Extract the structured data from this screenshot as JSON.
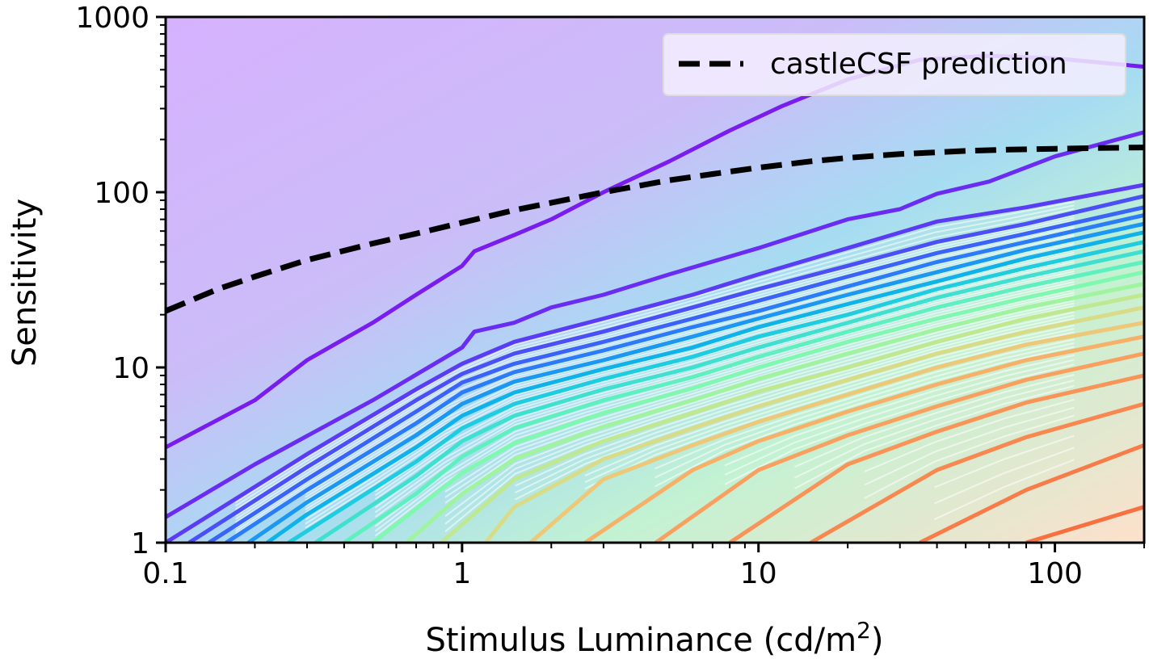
{
  "chart_data": {
    "type": "line",
    "title": "",
    "xlabel": "Stimulus Luminance (cd/m",
    "xlabel_sup": "2",
    "xlabel_end": ")",
    "ylabel": "Sensitivity",
    "xscale": "log",
    "yscale": "log",
    "xlim": [
      0.1,
      200
    ],
    "ylim": [
      1,
      1000
    ],
    "xticks": [
      0.1,
      1,
      10,
      100
    ],
    "xtick_labels": [
      "0.1",
      "1",
      "10",
      "100"
    ],
    "yticks": [
      1,
      10,
      100,
      1000
    ],
    "ytick_labels": [
      "1",
      "10",
      "100",
      "1000"
    ],
    "grid": false,
    "legend_position": "top-right",
    "background": {
      "type": "filled-contour",
      "colormap": "rainbow",
      "description_levels": "sensitivity contours increasing with luminance; level 1 at ~5 at 0.1 cd/m2 up to ~600 at 200 cd/m2"
    },
    "series": [
      {
        "name": "castleCSF prediction",
        "style": "dashed",
        "color": "#000000",
        "x": [
          0.1,
          0.15,
          0.2,
          0.3,
          0.5,
          0.7,
          1,
          1.5,
          2,
          3,
          5,
          7,
          10,
          15,
          20,
          30,
          50,
          70,
          100,
          150,
          200
        ],
        "y": [
          21,
          28,
          33,
          41,
          51,
          58,
          67,
          79,
          87,
          100,
          117,
          127,
          138,
          150,
          157,
          165,
          172,
          175,
          177,
          179,
          180
        ]
      }
    ],
    "contour_lines": [
      {
        "color": "#7a1cf0",
        "x": [
          0.1,
          0.2,
          0.3,
          0.5,
          0.7,
          1,
          1.1,
          1.5,
          2,
          3,
          5,
          8,
          12,
          20,
          35,
          60,
          100,
          200
        ],
        "y": [
          3.5,
          6.5,
          11,
          18,
          26,
          38,
          46,
          57,
          70,
          100,
          150,
          225,
          310,
          440,
          570,
          600,
          580,
          520
        ]
      },
      {
        "color": "#6a2cf2",
        "x": [
          0.1,
          0.2,
          0.5,
          1,
          1.1,
          1.5,
          2,
          3,
          5,
          10,
          20,
          30,
          40,
          60,
          100,
          200
        ],
        "y": [
          1.4,
          2.8,
          6.5,
          13,
          16,
          18,
          22,
          26,
          34,
          48,
          70,
          80,
          98,
          115,
          160,
          220
        ]
      },
      {
        "color": "#5a3cf4",
        "x": [
          0.1,
          0.3,
          0.7,
          1,
          1.5,
          3,
          6,
          10,
          20,
          40,
          80,
          200
        ],
        "y": [
          1.0,
          3.2,
          7.5,
          10.5,
          14,
          19,
          26,
          34,
          48,
          68,
          82,
          110
        ]
      },
      {
        "color": "#4a50f6",
        "x": [
          0.12,
          0.3,
          0.7,
          1,
          1.5,
          3,
          6,
          10,
          20,
          40,
          80,
          200
        ],
        "y": [
          1.0,
          2.7,
          6.5,
          9.2,
          12,
          16,
          22,
          28,
          38,
          52,
          66,
          95
        ]
      },
      {
        "color": "#3a64f8",
        "x": [
          0.14,
          0.3,
          0.7,
          1,
          1.5,
          3,
          6,
          10,
          20,
          40,
          80,
          200
        ],
        "y": [
          1.0,
          2.3,
          5.6,
          8.2,
          10.5,
          14,
          19,
          24,
          33,
          45,
          58,
          82
        ]
      },
      {
        "color": "#2a7cf8",
        "x": [
          0.16,
          0.3,
          0.7,
          1,
          1.5,
          3,
          6,
          10,
          20,
          40,
          80,
          200
        ],
        "y": [
          1.0,
          2.0,
          4.8,
          7.2,
          9.4,
          12.5,
          17,
          21,
          29,
          40,
          52,
          74
        ]
      },
      {
        "color": "#1a98f2",
        "x": [
          0.19,
          0.3,
          0.7,
          1,
          1.5,
          3,
          6,
          10,
          20,
          40,
          80,
          200
        ],
        "y": [
          1.0,
          1.7,
          4.1,
          6.2,
          8.3,
          11,
          15,
          19,
          26,
          35,
          47,
          66
        ]
      },
      {
        "color": "#10b2ea",
        "x": [
          0.22,
          0.3,
          0.7,
          1,
          1.5,
          3,
          6,
          10,
          20,
          40,
          80,
          200
        ],
        "y": [
          1.0,
          1.45,
          3.5,
          5.3,
          7.2,
          9.8,
          13,
          17,
          23,
          31,
          42,
          59
        ]
      },
      {
        "color": "#20cce0",
        "x": [
          0.26,
          0.7,
          1,
          1.5,
          3,
          6,
          10,
          20,
          40,
          80,
          200
        ],
        "y": [
          1.0,
          2.9,
          4.5,
          6.2,
          8.6,
          11.5,
          15,
          20,
          28,
          37,
          52
        ]
      },
      {
        "color": "#40e0d0",
        "x": [
          0.32,
          0.7,
          1,
          1.5,
          3,
          6,
          10,
          20,
          40,
          80,
          200
        ],
        "y": [
          1.0,
          2.4,
          3.8,
          5.3,
          7.5,
          10,
          13,
          18,
          25,
          33,
          46
        ]
      },
      {
        "color": "#60f0c0",
        "x": [
          0.4,
          0.7,
          1,
          1.5,
          3,
          6,
          10,
          20,
          40,
          80,
          200
        ],
        "y": [
          1.0,
          1.9,
          3.1,
          4.5,
          6.5,
          8.8,
          11.5,
          16,
          22,
          29,
          40
        ]
      },
      {
        "color": "#80f8b0",
        "x": [
          0.5,
          1,
          1.5,
          3,
          6,
          10,
          20,
          40,
          80,
          200
        ],
        "y": [
          1.0,
          2.5,
          3.7,
          5.5,
          7.6,
          10,
          14,
          19,
          25,
          35
        ]
      },
      {
        "color": "#a0f4a0",
        "x": [
          0.65,
          1,
          1.5,
          3,
          6,
          10,
          20,
          40,
          80,
          200
        ],
        "y": [
          1.0,
          1.9,
          3.0,
          4.6,
          6.5,
          8.6,
          12,
          16.5,
          22,
          30
        ]
      },
      {
        "color": "#c0e890",
        "x": [
          0.85,
          1.5,
          3,
          6,
          10,
          20,
          40,
          80,
          200
        ],
        "y": [
          1.0,
          2.3,
          3.8,
          5.5,
          7.3,
          10,
          14,
          19,
          26
        ]
      },
      {
        "color": "#d8dc88",
        "x": [
          1.2,
          1.5,
          3,
          6,
          10,
          20,
          40,
          80,
          200
        ],
        "y": [
          1.0,
          1.6,
          3.0,
          4.5,
          6.0,
          8.5,
          12,
          16,
          22
        ]
      },
      {
        "color": "#ecc878",
        "x": [
          1.7,
          3,
          6,
          10,
          20,
          40,
          80,
          200
        ],
        "y": [
          1.0,
          2.3,
          3.6,
          4.9,
          7.0,
          10,
          13.5,
          18
        ]
      },
      {
        "color": "#f6b068",
        "x": [
          2.6,
          6,
          10,
          20,
          40,
          80,
          200
        ],
        "y": [
          1.0,
          2.6,
          3.8,
          5.6,
          8.0,
          11,
          15
        ]
      },
      {
        "color": "#f8a060",
        "x": [
          4.5,
          10,
          20,
          40,
          80,
          200
        ],
        "y": [
          1.0,
          2.6,
          4.1,
          6.0,
          8.5,
          12
        ]
      },
      {
        "color": "#f89458",
        "x": [
          8,
          20,
          40,
          80,
          200
        ],
        "y": [
          1.0,
          2.8,
          4.3,
          6.3,
          9.0
        ]
      },
      {
        "color": "#f88850",
        "x": [
          15,
          40,
          80,
          200
        ],
        "y": [
          1.0,
          2.6,
          4.0,
          6.2
        ]
      },
      {
        "color": "#f87c48",
        "x": [
          35,
          80,
          200
        ],
        "y": [
          1.0,
          2.0,
          3.6
        ]
      },
      {
        "color": "#f87040",
        "x": [
          80,
          200
        ],
        "y": [
          1.0,
          1.6
        ]
      }
    ],
    "background_colors": {
      "top": "#d4b4fc",
      "upper_mid": "#c8bef8",
      "mid": "#a8e0f4",
      "lower_mid": "#c0f4d0",
      "bottom_right": "#fce0c8"
    }
  }
}
